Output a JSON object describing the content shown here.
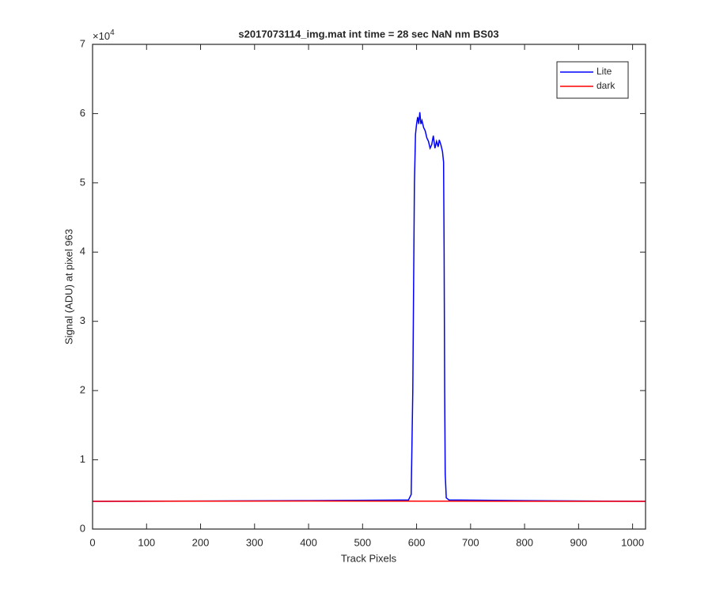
{
  "chart_data": {
    "type": "line",
    "title": "s2017073114_img.mat int time = 28 sec  NaN nm BS03",
    "x_label": "Track Pixels",
    "y_label": "Signal (ADU) at pixel 963",
    "y_multiplier": {
      "base": "×10",
      "exponent": "4"
    },
    "xlim": [
      0,
      1024
    ],
    "xticks": [
      0,
      100,
      200,
      300,
      400,
      500,
      600,
      700,
      800,
      900,
      1000
    ],
    "ylim": [
      0,
      7
    ],
    "yticks": [
      0,
      1,
      2,
      3,
      4,
      5,
      6,
      7
    ],
    "grid": false,
    "legend": "northeast",
    "series": [
      {
        "name": "Lite",
        "color": "#0000ff",
        "x": [
          0,
          400,
          585,
          590,
          593,
          596,
          598,
          600,
          602,
          604,
          606,
          608,
          610,
          613,
          616,
          619,
          622,
          625,
          628,
          631,
          634,
          637,
          640,
          642,
          645,
          648,
          650,
          651,
          652,
          653,
          655,
          660,
          800,
          1024
        ],
        "values": [
          0.4,
          0.41,
          0.42,
          0.5,
          2.0,
          5.0,
          5.7,
          5.85,
          5.95,
          5.85,
          6.02,
          5.85,
          5.9,
          5.8,
          5.75,
          5.65,
          5.6,
          5.5,
          5.55,
          5.68,
          5.5,
          5.6,
          5.52,
          5.62,
          5.55,
          5.45,
          5.3,
          4.0,
          2.0,
          0.8,
          0.45,
          0.42,
          0.41,
          0.4
        ]
      },
      {
        "name": "dark",
        "color": "#ff0000",
        "x": [
          0,
          400,
          1024
        ],
        "values": [
          0.4,
          0.405,
          0.4
        ]
      }
    ]
  }
}
